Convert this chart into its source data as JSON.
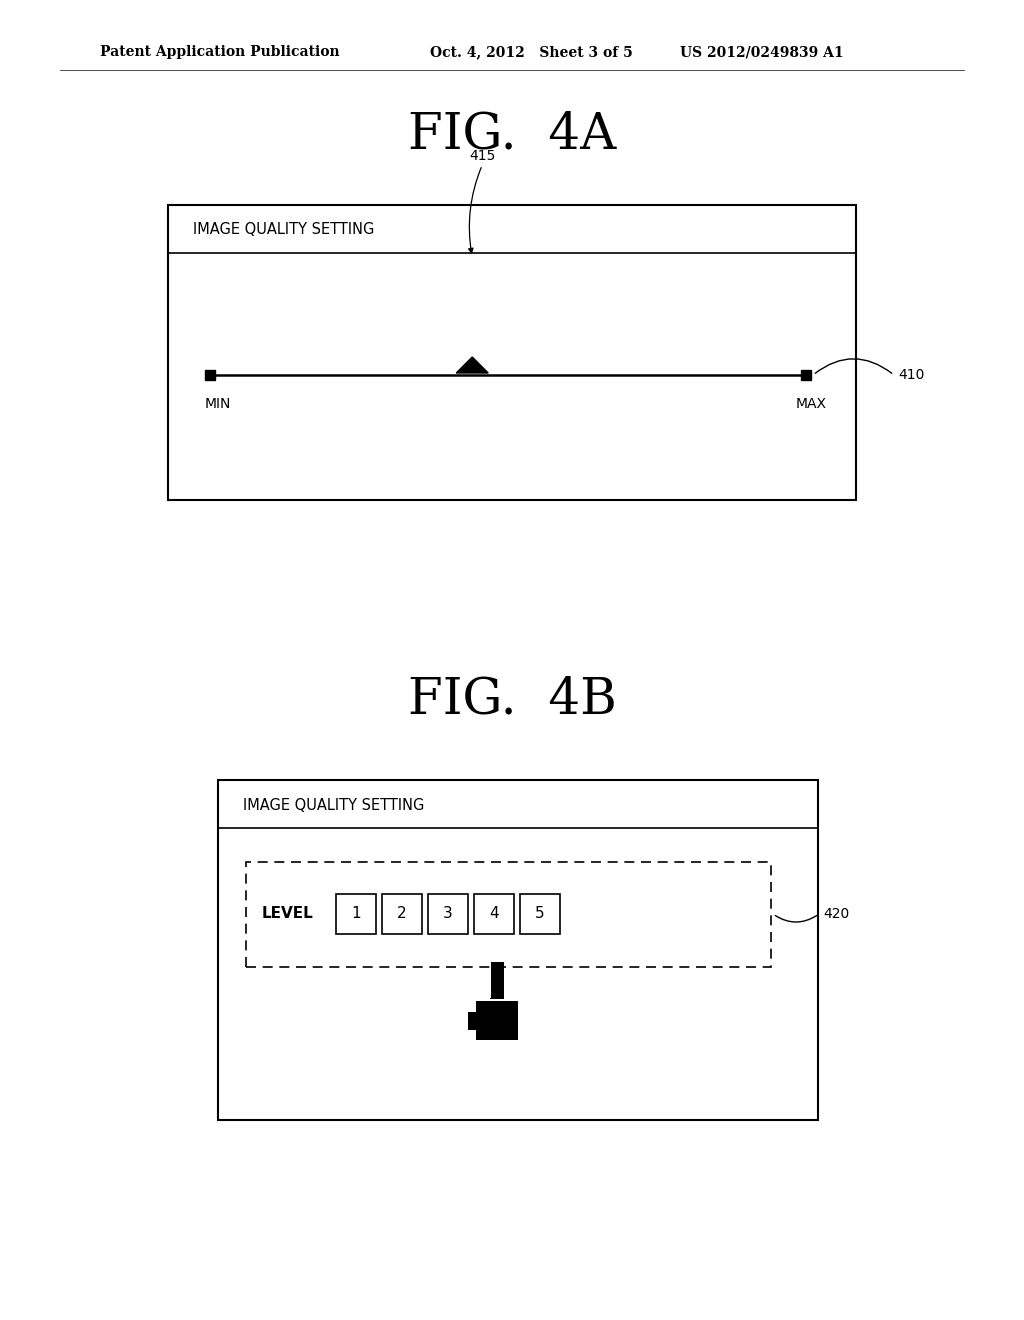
{
  "bg_color": "#ffffff",
  "header_left": "Patent Application Publication",
  "header_mid": "Oct. 4, 2012   Sheet 3 of 5",
  "header_right": "US 2012/0249839 A1",
  "fig4a_title": "FIG.  4A",
  "fig4b_title": "FIG.  4B",
  "fig4a_label": "IMAGE QUALITY SETTING",
  "fig4b_label": "IMAGE QUALITY SETTING",
  "slider_label_min": "MIN",
  "slider_label_max": "MAX",
  "ref_410": "410",
  "ref_415": "415",
  "ref_420": "420",
  "level_label": "LEVEL",
  "level_values": [
    "1",
    "2",
    "3",
    "4",
    "5"
  ],
  "fig_title_fontsize": 36,
  "header_fontsize": 10,
  "label_fontsize": 10.5,
  "ref_fontsize": 10
}
